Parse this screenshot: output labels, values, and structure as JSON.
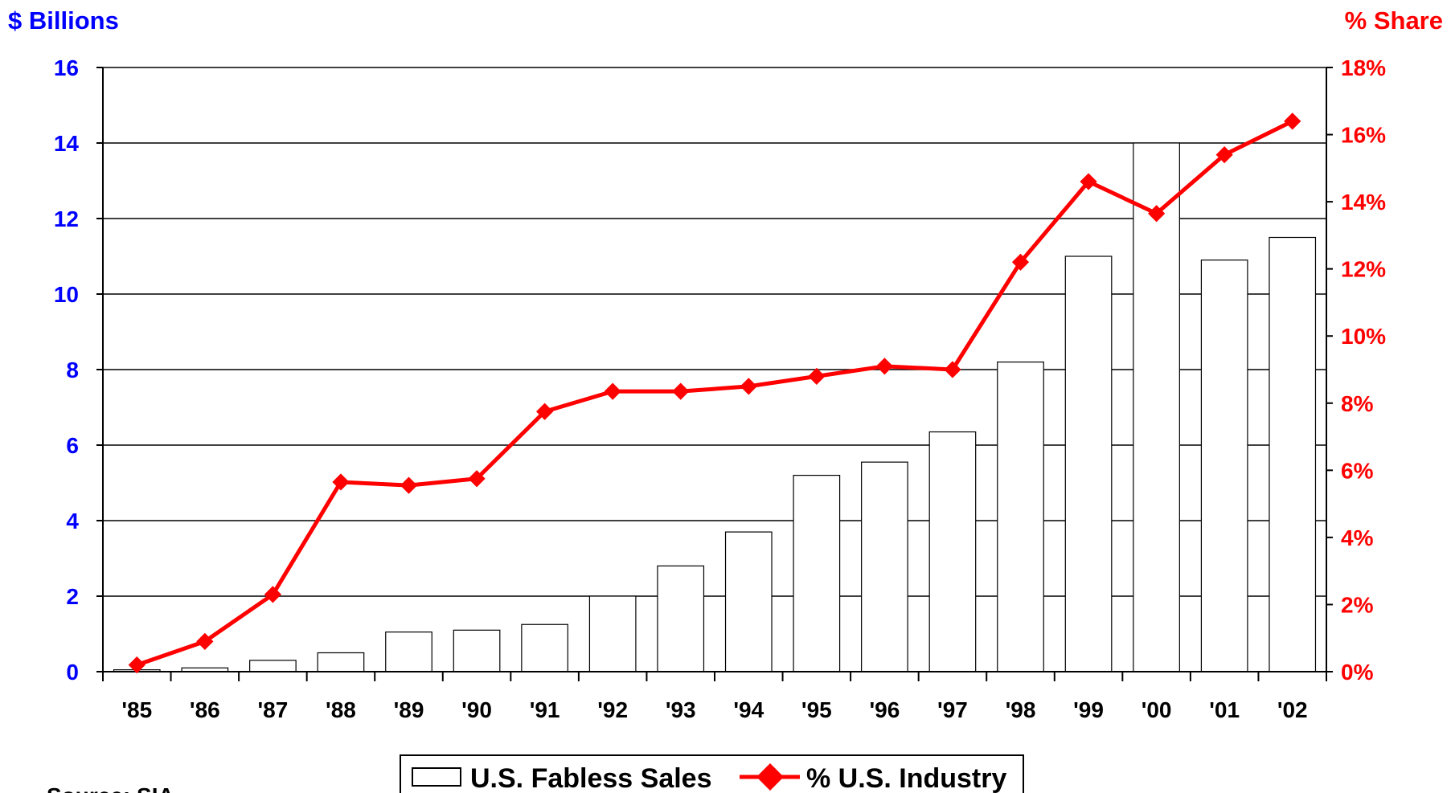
{
  "chart_data": {
    "type": "bar",
    "left_axis_label": "$ Billions",
    "right_axis_label": "% Share",
    "categories": [
      "'85",
      "'86",
      "'87",
      "'88",
      "'89",
      "'90",
      "'91",
      "'92",
      "'93",
      "'94",
      "'95",
      "'96",
      "'97",
      "'98",
      "'99",
      "'00",
      "'01",
      "'02"
    ],
    "left_ticks": [
      "0",
      "2",
      "4",
      "6",
      "8",
      "10",
      "12",
      "14",
      "16"
    ],
    "right_ticks": [
      "0%",
      "2%",
      "4%",
      "6%",
      "8%",
      "10%",
      "12%",
      "14%",
      "16%",
      "18%"
    ],
    "left_ylim": [
      0,
      16
    ],
    "right_ylim": [
      0,
      18
    ],
    "series": [
      {
        "name": "U.S. Fabless Sales",
        "type": "bar",
        "axis": "left",
        "color": "#ffffff",
        "values": [
          0.05,
          0.1,
          0.3,
          0.5,
          1.05,
          1.1,
          1.25,
          2.0,
          2.8,
          3.7,
          5.2,
          5.55,
          6.35,
          8.2,
          11.0,
          14.0,
          10.9,
          11.5
        ]
      },
      {
        "name": "% U.S. Industry",
        "type": "line",
        "axis": "right",
        "color": "#ff0000",
        "values": [
          0.2,
          0.9,
          2.3,
          5.65,
          5.55,
          5.75,
          7.75,
          8.35,
          8.35,
          8.5,
          8.8,
          9.1,
          9.0,
          12.2,
          14.6,
          13.65,
          15.4,
          16.4
        ]
      }
    ],
    "grid": true,
    "legend_position": "bottom-center",
    "source_text": "Source: SIA"
  }
}
